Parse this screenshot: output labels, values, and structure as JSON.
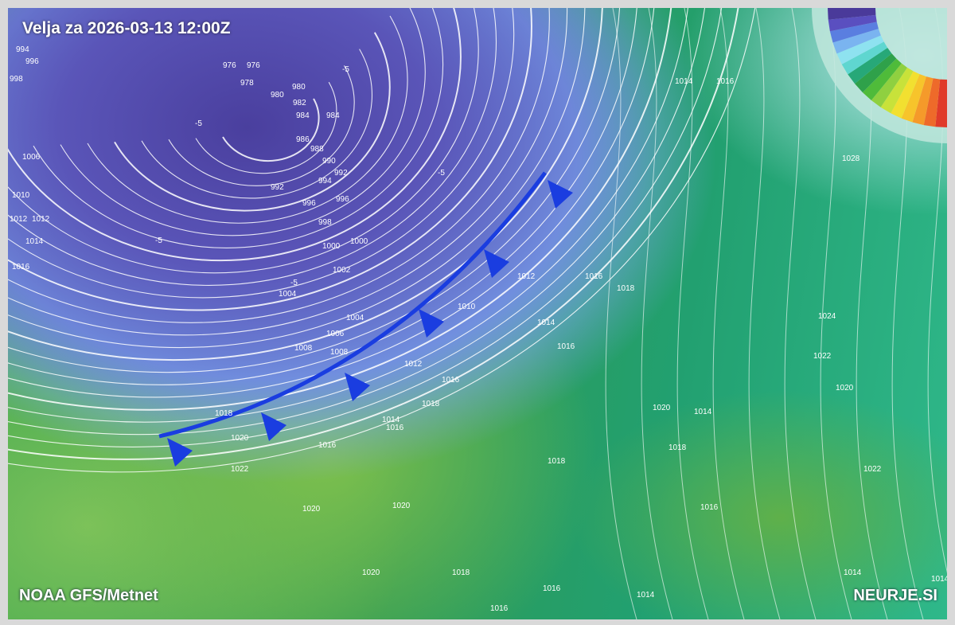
{
  "map": {
    "title": "Velja za 2026-03-13 12:00Z",
    "source_credit": "NOAA GFS/Metnet",
    "site_credit": "NEURJE.SI",
    "front": {
      "type": "cold-front",
      "color": "#1a3de0"
    },
    "isobar_labels": [
      "994",
      "996",
      "998",
      "1006",
      "1010",
      "1012",
      "1012",
      "1014",
      "1016",
      "976",
      "976",
      "978",
      "980",
      "980",
      "982",
      "984",
      "984",
      "986",
      "988",
      "990",
      "992",
      "992",
      "994",
      "996",
      "996",
      "998",
      "1000",
      "1000",
      "1002",
      "1004",
      "1004",
      "1006",
      "1008",
      "1008",
      "1010",
      "1012",
      "1012",
      "1014",
      "1016",
      "1018",
      "1020",
      "1022",
      "1016",
      "1016",
      "1014",
      "1016",
      "1018",
      "1020",
      "1018",
      "1016",
      "1018",
      "1020",
      "1020",
      "1014",
      "1018",
      "1016",
      "1024",
      "1022",
      "1020",
      "1028",
      "1014",
      "1016",
      "1014",
      "1016",
      "1014",
      "1020",
      "1018",
      "1016",
      "1014",
      "1022"
    ],
    "temperature_labels": [
      "-5",
      "-5",
      "-5",
      "-5",
      "-5"
    ],
    "colors": {
      "low_pressure": "#4a3f9e",
      "land_green": "#2e9a55",
      "front": "#1a3de0",
      "isobar": "#ffffff"
    }
  }
}
